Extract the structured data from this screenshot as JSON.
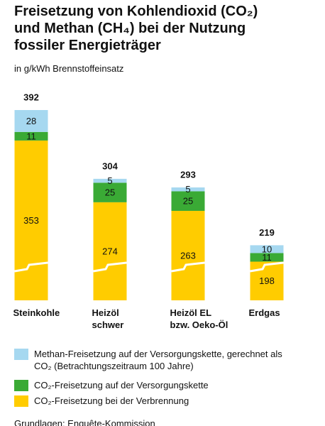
{
  "chart_data": {
    "type": "stacked-bar",
    "title_lines": [
      "Freisetzung von Kohlendioxid (CO₂)",
      "und Methan (CH₄) bei der Nutzung",
      "fossiler Energieträger"
    ],
    "subtitle": "in g/kWh Brennstoffeinsatz",
    "categories": [
      "Steinkohle",
      "Heizöl\nschwer",
      "Heizöl EL\nbzw. Oeko-Öl",
      "Erdgas"
    ],
    "totals": [
      392,
      304,
      293,
      219
    ],
    "series": [
      {
        "name": "CO₂-Freisetzung bei der Verbrennung",
        "color": "#ffcc00",
        "values": [
          353,
          274,
          263,
          198
        ]
      },
      {
        "name": "CO₂-Freisetzung auf der Versorgungskette",
        "color": "#3aaa35",
        "values": [
          11,
          25,
          25,
          11
        ]
      },
      {
        "name": "Methan-Freisetzung auf der Versorgungskette, gerechnet als\nCO₂ (Betrachtungszeitraum 100 Jahre)",
        "color": "#a6d8f0",
        "values": [
          28,
          5,
          5,
          10
        ]
      }
    ],
    "source": "Grundlagen: Enquête-Kommission"
  }
}
